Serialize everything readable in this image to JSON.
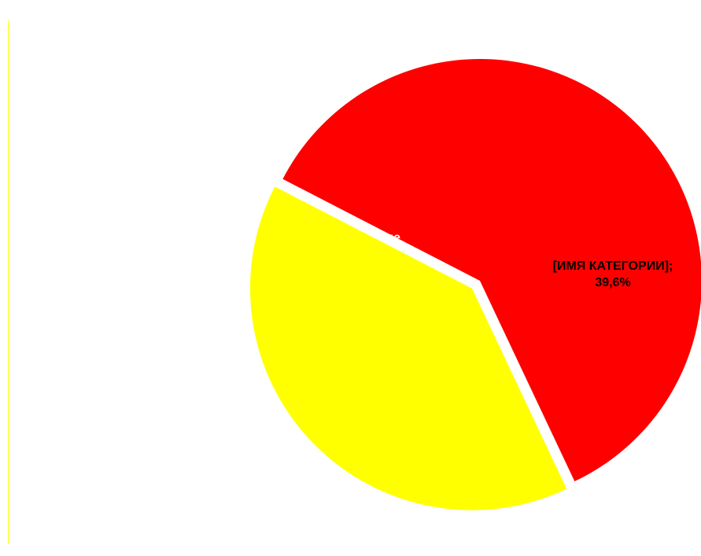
{
  "chart_data": {
    "type": "pie",
    "title": "",
    "slices": [
      {
        "label": "Безвозмездные поступления (межбюджетные трансферты)",
        "value": 60.4,
        "value_text": "60,4%",
        "label_lines": [
          "Безвозмездные",
          "поступления",
          "(межбюджетные",
          "трансферты); 60,4%"
        ],
        "color": "#ff0000",
        "label_color": "#ffffff"
      },
      {
        "label": "[ИМЯ КАТЕГОРИИ]",
        "value": 39.6,
        "value_text": "39,6%",
        "label_lines": [
          "[ИМЯ КАТЕГОРИИ];",
          "39,6%"
        ],
        "color": "#ffff00",
        "label_color": "#000000"
      }
    ],
    "legend": "none",
    "exploded_slice": 1
  }
}
